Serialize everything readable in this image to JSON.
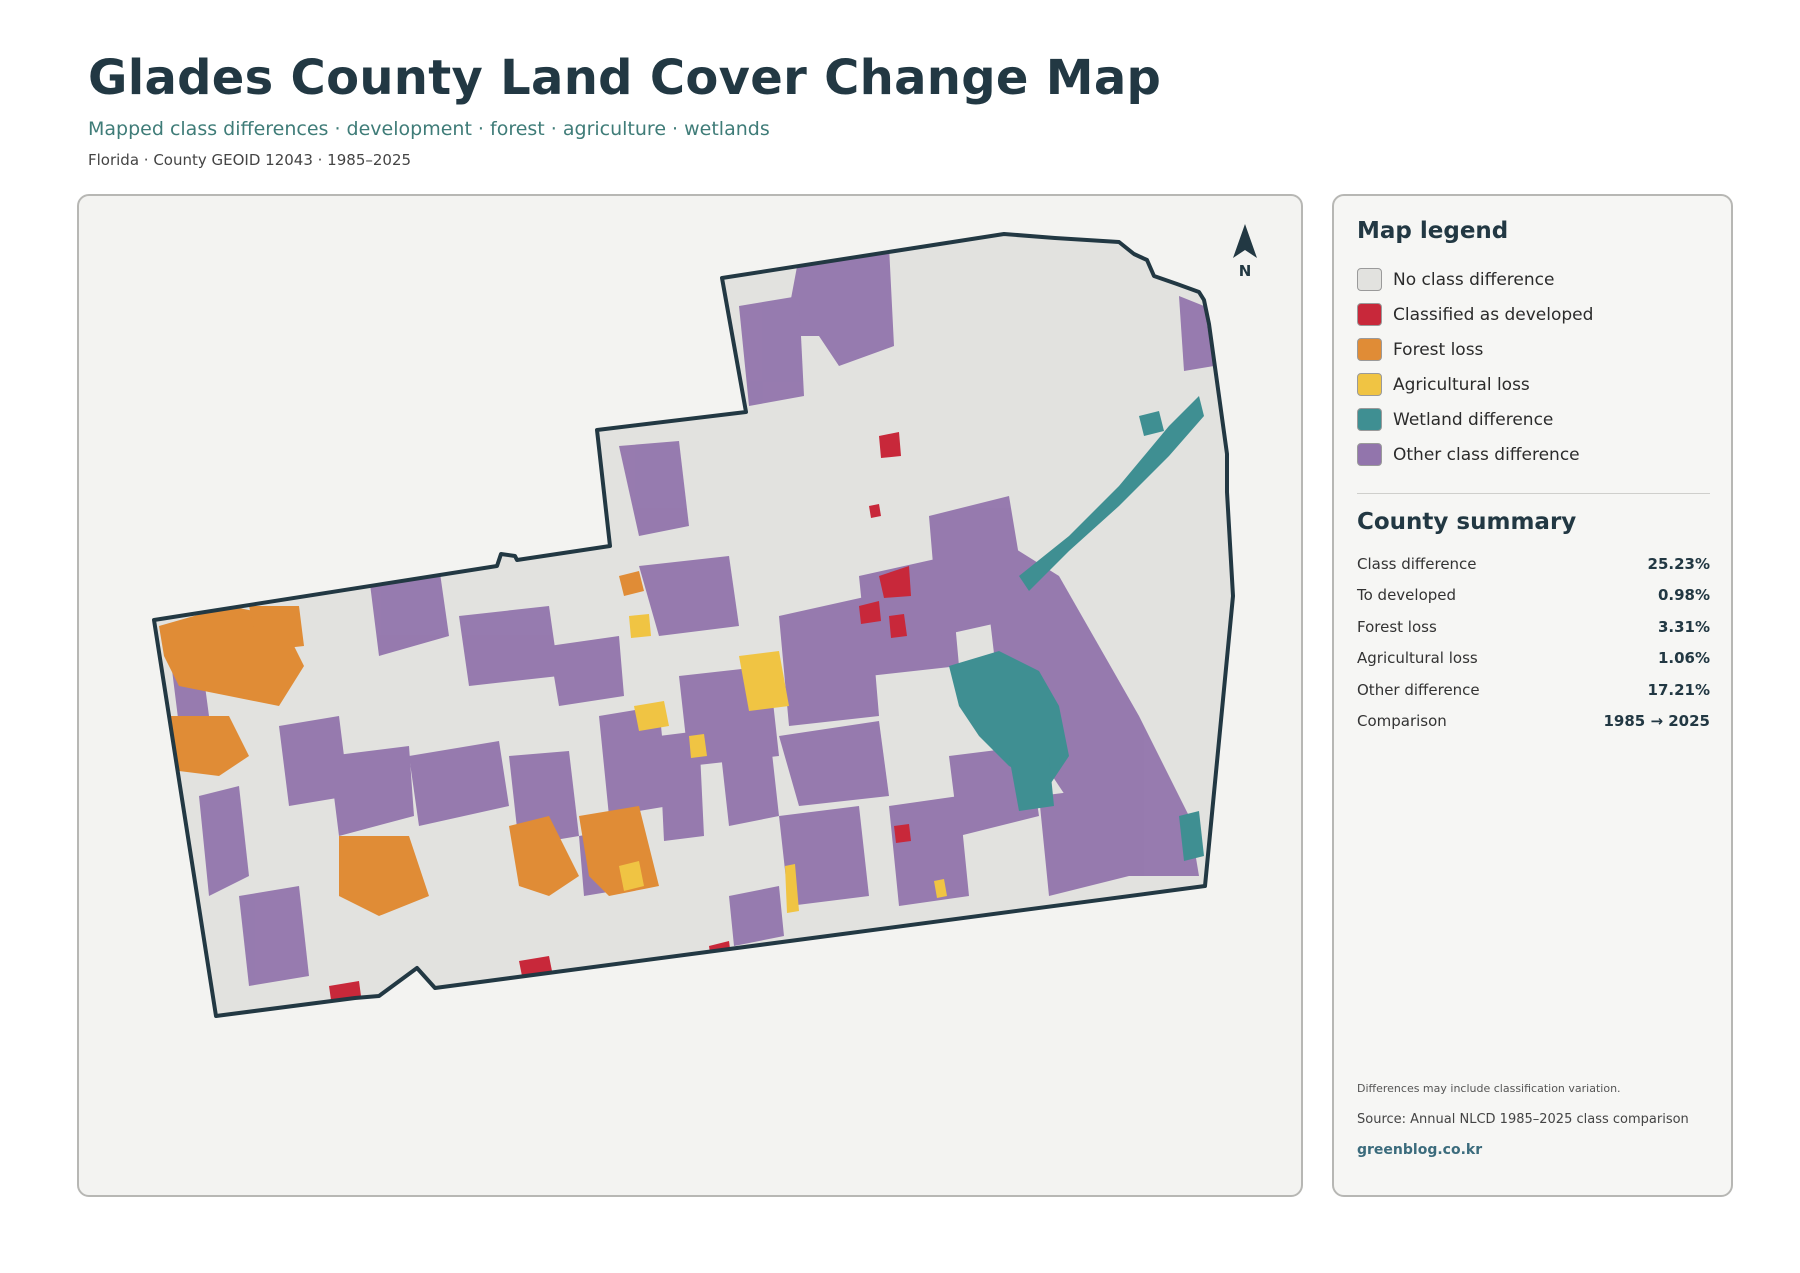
{
  "header": {
    "title": "Glades County Land Cover Change Map",
    "subtitle": "Mapped class differences · development · forest · agriculture · wetlands",
    "meta": "Florida · County GEOID 12043 · 1985–2025"
  },
  "map": {
    "north_label": "N"
  },
  "legend": {
    "title": "Map legend",
    "items": [
      {
        "label": "No class difference",
        "color": "#e2e2df"
      },
      {
        "label": "Classified as developed",
        "color": "#c8283a"
      },
      {
        "label": "Forest loss",
        "color": "#e08c36"
      },
      {
        "label": "Agricultural loss",
        "color": "#f0c443"
      },
      {
        "label": "Wetland difference",
        "color": "#3f8f92"
      },
      {
        "label": "Other class difference",
        "color": "#9275ac"
      }
    ]
  },
  "summary": {
    "title": "County summary",
    "rows": [
      {
        "label": "Class difference",
        "value": "25.23%"
      },
      {
        "label": "To developed",
        "value": "0.98%"
      },
      {
        "label": "Forest loss",
        "value": "3.31%"
      },
      {
        "label": "Agricultural loss",
        "value": "1.06%"
      },
      {
        "label": "Other difference",
        "value": "17.21%"
      },
      {
        "label": "Comparison",
        "value": "1985 → 2025"
      }
    ]
  },
  "footer": {
    "note": "Differences may include classification variation.",
    "source": "Source: Annual NLCD 1985–2025 class comparison",
    "site": "greenblog.co.kr"
  }
}
